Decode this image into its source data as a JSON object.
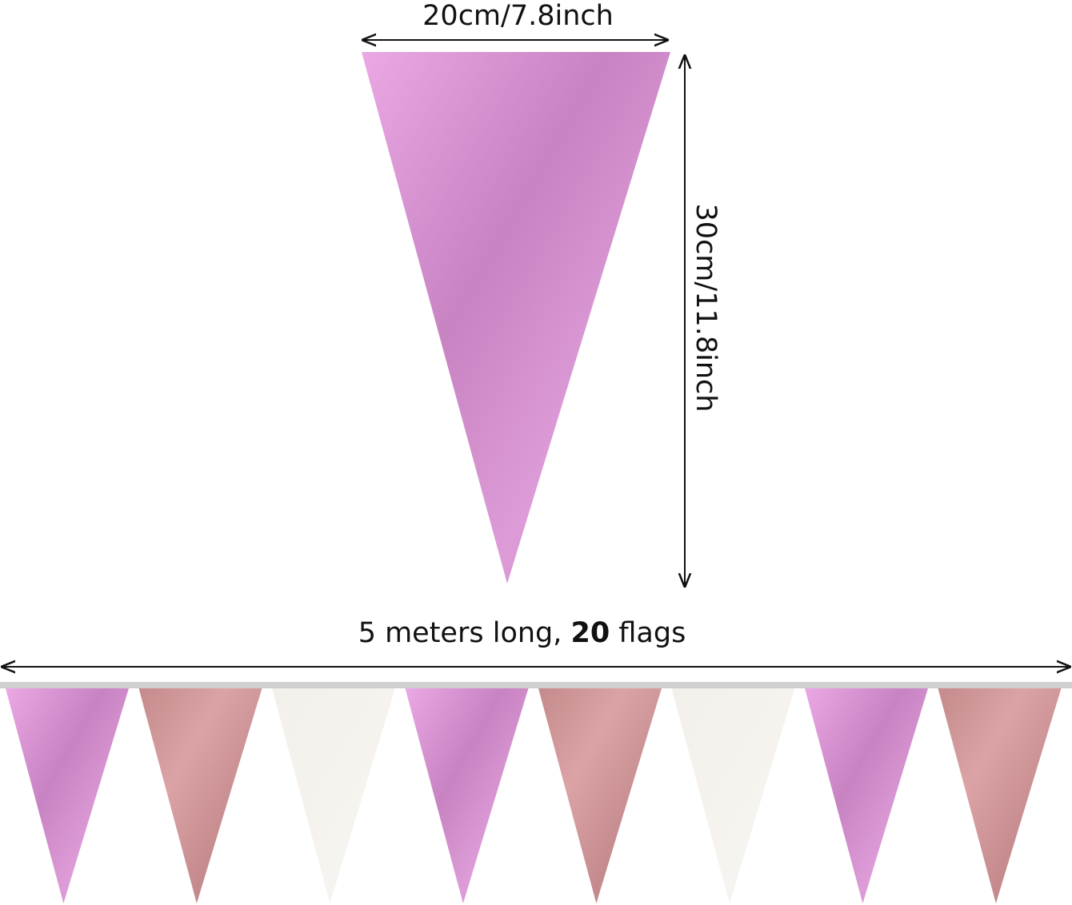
{
  "dimensions": {
    "width_label": "20cm/7.8inch",
    "height_label": "30cm/11.8inch",
    "length_prefix": "5 meters long, ",
    "length_count": "20",
    "length_suffix": " flags"
  },
  "colors": {
    "pink": "#e2a0dc",
    "pink_dark": "#c27ebc",
    "rose_gold": "#d79ea0",
    "rose_gold_dark": "#bd8084",
    "white": "#f4f1ec",
    "string": "#cfcfcf"
  },
  "bunting": {
    "flag_colors": [
      "pink",
      "rose_gold",
      "white",
      "pink",
      "rose_gold",
      "white",
      "pink",
      "rose_gold"
    ]
  }
}
